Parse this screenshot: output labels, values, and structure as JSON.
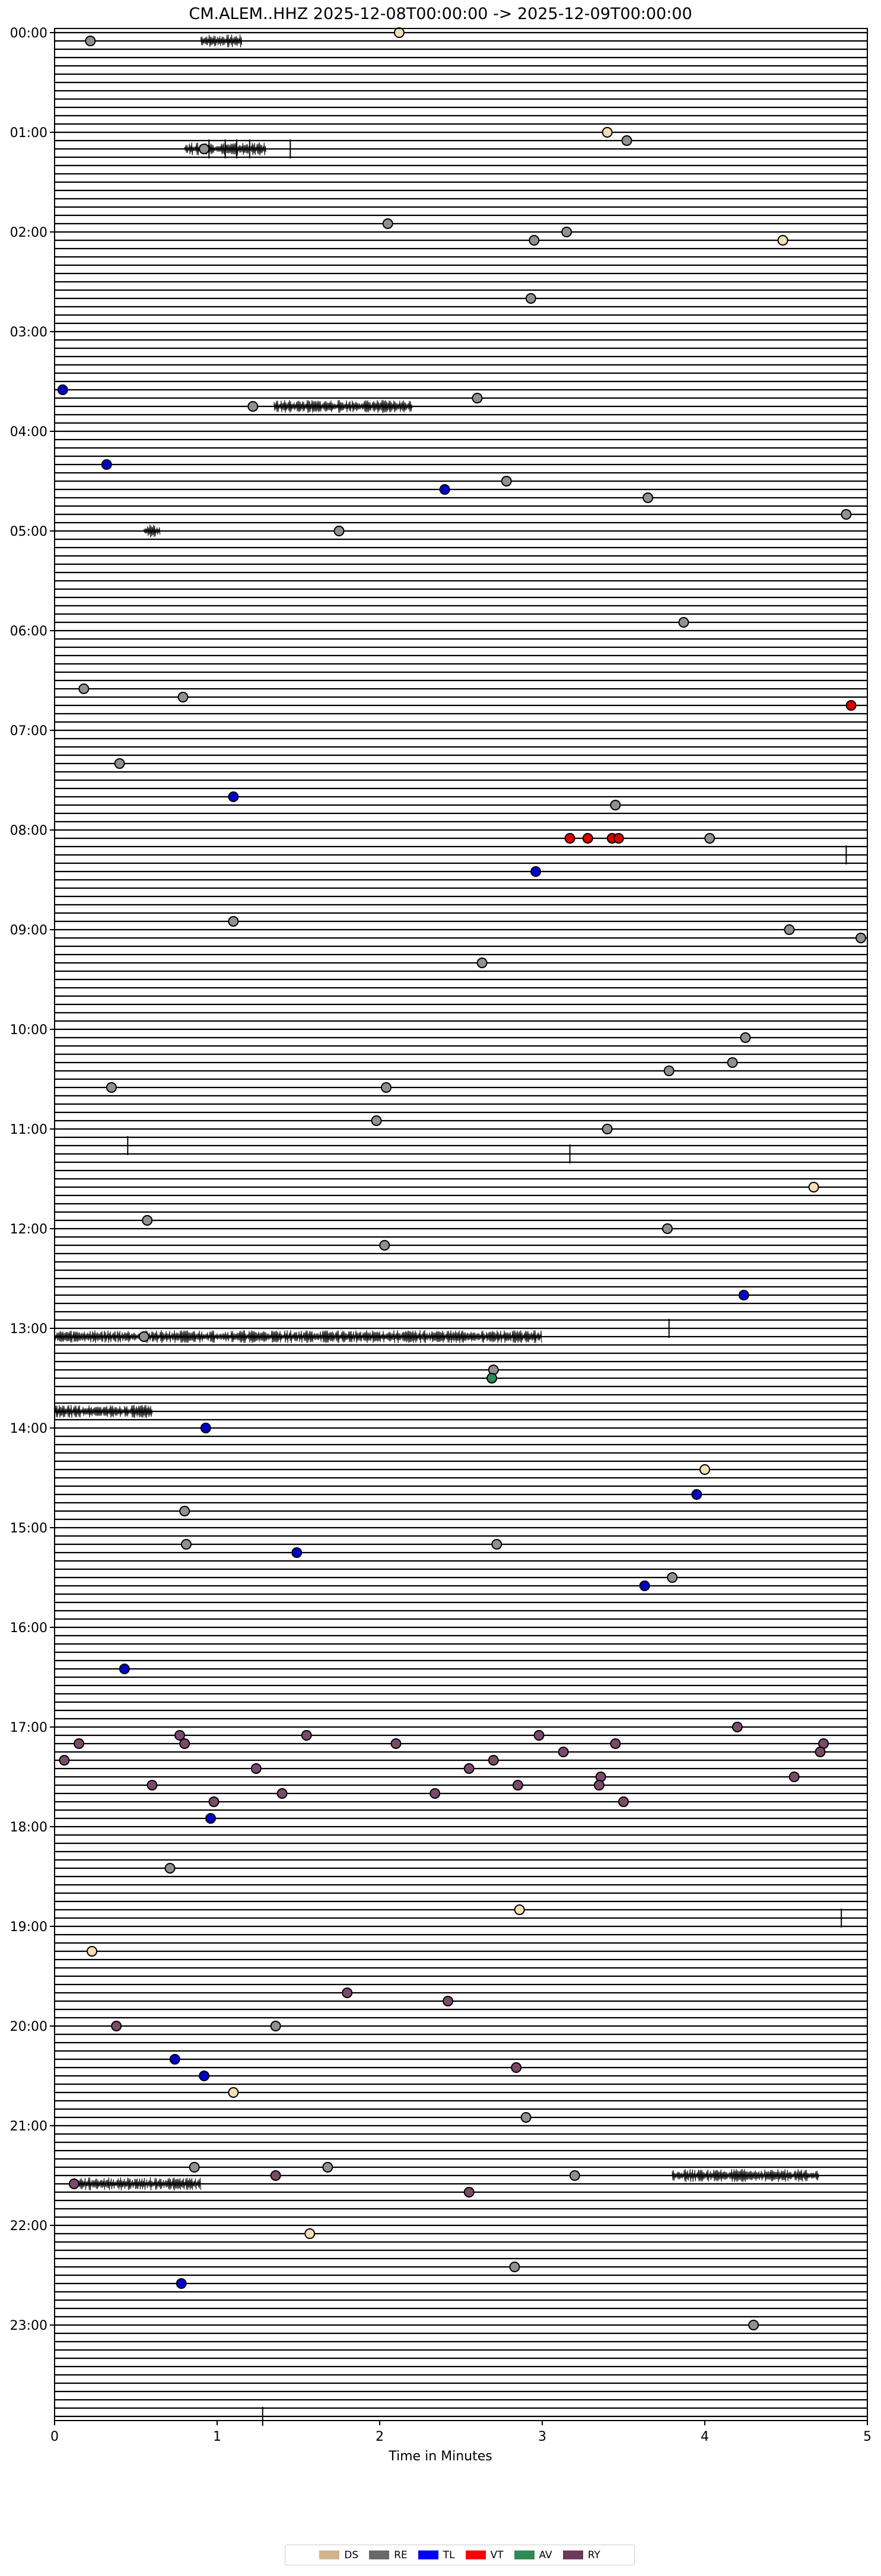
{
  "chart_data": {
    "type": "scatter",
    "title": "CM.ALEM..HHZ  2025-12-08T00:00:00 -> 2025-12-09T00:00:00",
    "xlabel": "Time in Minutes",
    "ylabel": "",
    "xlim": [
      0,
      5
    ],
    "x_ticks": [
      0,
      1,
      2,
      3,
      4,
      5
    ],
    "x_tick_labels": [
      "0",
      "1",
      "2",
      "3",
      "4",
      "5"
    ],
    "y_tick_labels": [
      "00:00",
      "01:00",
      "02:00",
      "03:00",
      "04:00",
      "05:00",
      "06:00",
      "07:00",
      "08:00",
      "09:00",
      "10:00",
      "11:00",
      "12:00",
      "13:00",
      "14:00",
      "15:00",
      "16:00",
      "17:00",
      "18:00",
      "19:00",
      "20:00",
      "21:00",
      "22:00",
      "23:00"
    ],
    "traces_per_hour": 12,
    "trace_minutes": 5,
    "legend_position": "bottom-center",
    "legend": [
      {
        "code": "DS",
        "color": "#d2b48c"
      },
      {
        "code": "RE",
        "color": "#696969"
      },
      {
        "code": "TL",
        "color": "#0000ff"
      },
      {
        "code": "VT",
        "color": "#ff0000"
      },
      {
        "code": "AV",
        "color": "#2e8b57"
      },
      {
        "code": "RY",
        "color": "#6b3a5a"
      }
    ],
    "event_marker_colors": {
      "DS": "#f5deb3",
      "RE": "#909090",
      "TL": "#0000cd",
      "VT": "#dd0000",
      "AV": "#2e8b57",
      "RY": "#7a4a6a"
    },
    "events": [
      {
        "time": "00:00",
        "minute": 2.12,
        "class": "DS"
      },
      {
        "time": "00:05",
        "minute": 0.22,
        "class": "RE"
      },
      {
        "time": "01:00",
        "minute": 3.4,
        "class": "DS"
      },
      {
        "time": "01:05",
        "minute": 3.52,
        "class": "RE"
      },
      {
        "time": "01:10",
        "minute": 0.92,
        "class": "RE"
      },
      {
        "time": "01:55",
        "minute": 2.05,
        "class": "RE"
      },
      {
        "time": "02:00",
        "minute": 3.15,
        "class": "RE"
      },
      {
        "time": "02:05",
        "minute": 2.95,
        "class": "RE"
      },
      {
        "time": "02:05",
        "minute": 4.48,
        "class": "DS"
      },
      {
        "time": "02:40",
        "minute": 2.93,
        "class": "RE"
      },
      {
        "time": "03:35",
        "minute": 0.05,
        "class": "TL"
      },
      {
        "time": "03:45",
        "minute": 1.22,
        "class": "RE"
      },
      {
        "time": "03:40",
        "minute": 2.6,
        "class": "RE"
      },
      {
        "time": "04:20",
        "minute": 0.32,
        "class": "TL"
      },
      {
        "time": "04:35",
        "minute": 2.4,
        "class": "TL"
      },
      {
        "time": "04:30",
        "minute": 2.78,
        "class": "RE"
      },
      {
        "time": "04:40",
        "minute": 3.65,
        "class": "RE"
      },
      {
        "time": "04:50",
        "minute": 4.87,
        "class": "RE"
      },
      {
        "time": "05:00",
        "minute": 1.75,
        "class": "RE"
      },
      {
        "time": "05:55",
        "minute": 3.87,
        "class": "RE"
      },
      {
        "time": "06:35",
        "minute": 0.18,
        "class": "RE"
      },
      {
        "time": "06:40",
        "minute": 0.79,
        "class": "RE"
      },
      {
        "time": "06:45",
        "minute": 4.9,
        "class": "VT"
      },
      {
        "time": "07:20",
        "minute": 0.4,
        "class": "RE"
      },
      {
        "time": "07:40",
        "minute": 1.1,
        "class": "TL"
      },
      {
        "time": "07:45",
        "minute": 3.45,
        "class": "RE"
      },
      {
        "time": "08:05",
        "minute": 3.17,
        "class": "VT"
      },
      {
        "time": "08:05",
        "minute": 3.28,
        "class": "VT"
      },
      {
        "time": "08:05",
        "minute": 3.43,
        "class": "VT"
      },
      {
        "time": "08:05",
        "minute": 3.47,
        "class": "VT"
      },
      {
        "time": "08:05",
        "minute": 4.03,
        "class": "RE"
      },
      {
        "time": "08:25",
        "minute": 2.96,
        "class": "TL"
      },
      {
        "time": "08:55",
        "minute": 1.1,
        "class": "RE"
      },
      {
        "time": "09:00",
        "minute": 4.52,
        "class": "RE"
      },
      {
        "time": "09:05",
        "minute": 4.96,
        "class": "RE"
      },
      {
        "time": "09:20",
        "minute": 2.63,
        "class": "RE"
      },
      {
        "time": "10:05",
        "minute": 4.25,
        "class": "RE"
      },
      {
        "time": "10:20",
        "minute": 4.17,
        "class": "RE"
      },
      {
        "time": "10:25",
        "minute": 3.78,
        "class": "RE"
      },
      {
        "time": "10:35",
        "minute": 0.35,
        "class": "RE"
      },
      {
        "time": "10:35",
        "minute": 2.04,
        "class": "RE"
      },
      {
        "time": "10:55",
        "minute": 1.98,
        "class": "RE"
      },
      {
        "time": "11:00",
        "minute": 3.4,
        "class": "RE"
      },
      {
        "time": "11:35",
        "minute": 4.67,
        "class": "DS"
      },
      {
        "time": "11:55",
        "minute": 0.57,
        "class": "RE"
      },
      {
        "time": "12:00",
        "minute": 3.77,
        "class": "RE"
      },
      {
        "time": "12:10",
        "minute": 2.03,
        "class": "RE"
      },
      {
        "time": "12:40",
        "minute": 4.24,
        "class": "TL"
      },
      {
        "time": "13:05",
        "minute": 0.55,
        "class": "RE"
      },
      {
        "time": "13:25",
        "minute": 2.7,
        "class": "RE"
      },
      {
        "time": "13:30",
        "minute": 2.69,
        "class": "AV"
      },
      {
        "time": "14:00",
        "minute": 0.93,
        "class": "TL"
      },
      {
        "time": "14:25",
        "minute": 4.0,
        "class": "DS"
      },
      {
        "time": "14:40",
        "minute": 3.95,
        "class": "TL"
      },
      {
        "time": "14:50",
        "minute": 0.8,
        "class": "RE"
      },
      {
        "time": "15:10",
        "minute": 0.81,
        "class": "RE"
      },
      {
        "time": "15:10",
        "minute": 2.72,
        "class": "RE"
      },
      {
        "time": "15:15",
        "minute": 1.49,
        "class": "TL"
      },
      {
        "time": "15:30",
        "minute": 3.8,
        "class": "RE"
      },
      {
        "time": "15:35",
        "minute": 3.63,
        "class": "TL"
      },
      {
        "time": "16:25",
        "minute": 0.43,
        "class": "TL"
      },
      {
        "time": "17:00",
        "minute": 4.2,
        "class": "RY"
      },
      {
        "time": "17:05",
        "minute": 0.77,
        "class": "RY"
      },
      {
        "time": "17:05",
        "minute": 1.55,
        "class": "RY"
      },
      {
        "time": "17:05",
        "minute": 2.98,
        "class": "RY"
      },
      {
        "time": "17:10",
        "minute": 0.15,
        "class": "RY"
      },
      {
        "time": "17:10",
        "minute": 0.8,
        "class": "RY"
      },
      {
        "time": "17:10",
        "minute": 2.1,
        "class": "RY"
      },
      {
        "time": "17:10",
        "minute": 3.45,
        "class": "RY"
      },
      {
        "time": "17:10",
        "minute": 4.73,
        "class": "RY"
      },
      {
        "time": "17:15",
        "minute": 3.13,
        "class": "RY"
      },
      {
        "time": "17:15",
        "minute": 4.71,
        "class": "RY"
      },
      {
        "time": "17:20",
        "minute": 0.06,
        "class": "RY"
      },
      {
        "time": "17:20",
        "minute": 2.7,
        "class": "RY"
      },
      {
        "time": "17:25",
        "minute": 1.24,
        "class": "RY"
      },
      {
        "time": "17:25",
        "minute": 2.55,
        "class": "RY"
      },
      {
        "time": "17:30",
        "minute": 3.36,
        "class": "RY"
      },
      {
        "time": "17:30",
        "minute": 4.55,
        "class": "RY"
      },
      {
        "time": "17:35",
        "minute": 0.6,
        "class": "RY"
      },
      {
        "time": "17:35",
        "minute": 2.85,
        "class": "RY"
      },
      {
        "time": "17:35",
        "minute": 3.35,
        "class": "RY"
      },
      {
        "time": "17:40",
        "minute": 1.4,
        "class": "RY"
      },
      {
        "time": "17:40",
        "minute": 2.34,
        "class": "RY"
      },
      {
        "time": "17:45",
        "minute": 0.98,
        "class": "RY"
      },
      {
        "time": "17:45",
        "minute": 3.5,
        "class": "RY"
      },
      {
        "time": "17:55",
        "minute": 0.96,
        "class": "TL"
      },
      {
        "time": "18:25",
        "minute": 0.71,
        "class": "RE"
      },
      {
        "time": "18:50",
        "minute": 2.86,
        "class": "DS"
      },
      {
        "time": "19:15",
        "minute": 0.23,
        "class": "DS"
      },
      {
        "time": "19:40",
        "minute": 1.8,
        "class": "RY"
      },
      {
        "time": "19:45",
        "minute": 2.42,
        "class": "RY"
      },
      {
        "time": "20:00",
        "minute": 0.38,
        "class": "RY"
      },
      {
        "time": "20:00",
        "minute": 1.36,
        "class": "RE"
      },
      {
        "time": "20:20",
        "minute": 0.74,
        "class": "TL"
      },
      {
        "time": "20:25",
        "minute": 2.84,
        "class": "RY"
      },
      {
        "time": "20:30",
        "minute": 0.92,
        "class": "TL"
      },
      {
        "time": "20:40",
        "minute": 1.1,
        "class": "DS"
      },
      {
        "time": "20:55",
        "minute": 2.9,
        "class": "RE"
      },
      {
        "time": "21:25",
        "minute": 0.86,
        "class": "RE"
      },
      {
        "time": "21:25",
        "minute": 1.68,
        "class": "RE"
      },
      {
        "time": "21:30",
        "minute": 1.36,
        "class": "RY"
      },
      {
        "time": "21:30",
        "minute": 3.2,
        "class": "RE"
      },
      {
        "time": "21:35",
        "minute": 0.12,
        "class": "RY"
      },
      {
        "time": "21:40",
        "minute": 2.55,
        "class": "RY"
      },
      {
        "time": "22:05",
        "minute": 1.57,
        "class": "DS"
      },
      {
        "time": "22:25",
        "minute": 2.83,
        "class": "RE"
      },
      {
        "time": "22:35",
        "minute": 0.78,
        "class": "TL"
      },
      {
        "time": "23:00",
        "minute": 4.3,
        "class": "RE"
      }
    ],
    "spikes": [
      {
        "time": "01:10",
        "minute": 0.95
      },
      {
        "time": "01:10",
        "minute": 1.05
      },
      {
        "time": "01:10",
        "minute": 1.12
      },
      {
        "time": "01:10",
        "minute": 1.2
      },
      {
        "time": "01:10",
        "minute": 1.45
      },
      {
        "time": "08:15",
        "minute": 4.87
      },
      {
        "time": "11:10",
        "minute": 0.45
      },
      {
        "time": "11:15",
        "minute": 3.17
      },
      {
        "time": "13:00",
        "minute": 3.78
      },
      {
        "time": "18:55",
        "minute": 4.84
      },
      {
        "time": "23:55",
        "minute": 1.28
      }
    ],
    "bursts": [
      {
        "time": "00:05",
        "minute_start": 0.9,
        "minute_end": 1.15
      },
      {
        "time": "01:10",
        "minute_start": 0.8,
        "minute_end": 1.3
      },
      {
        "time": "03:45",
        "minute_start": 1.35,
        "minute_end": 2.2
      },
      {
        "time": "05:00",
        "minute_start": 0.55,
        "minute_end": 0.65
      },
      {
        "time": "13:05",
        "minute_start": 0.0,
        "minute_end": 3.0
      },
      {
        "time": "13:50",
        "minute_start": 0.0,
        "minute_end": 0.6
      },
      {
        "time": "21:30",
        "minute_start": 3.8,
        "minute_end": 4.7
      },
      {
        "time": "21:35",
        "minute_start": 0.1,
        "minute_end": 0.9
      }
    ]
  }
}
